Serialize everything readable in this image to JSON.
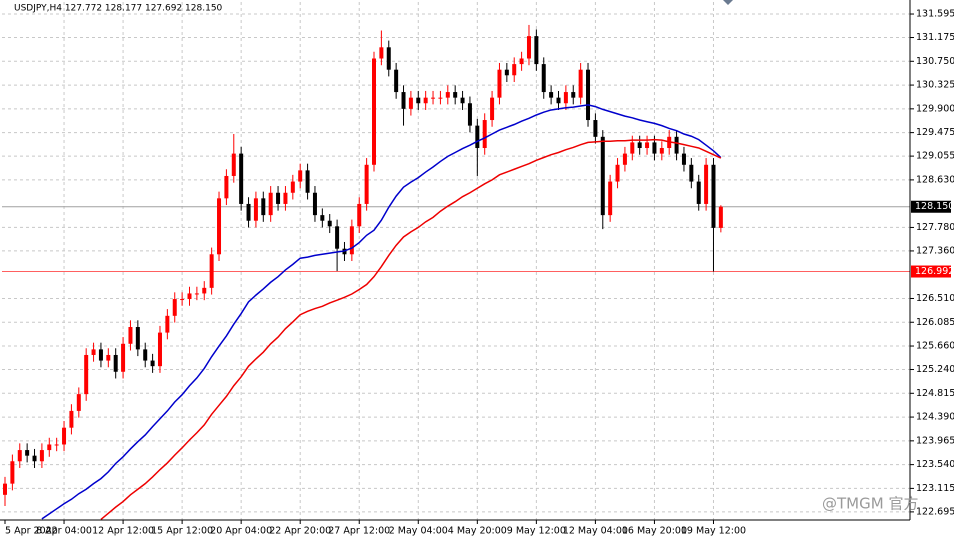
{
  "chart_data": {
    "type": "candlestick",
    "title": "USDJPY,H4 127.772 128.177 127.692 128.150",
    "watermark": "@TMGM 官方",
    "up_color": "#ff0000",
    "down_color": "#000000",
    "grid": true,
    "ylim": [
      122.55,
      131.81
    ],
    "yticks": [
      131.595,
      131.175,
      {
        "value": 130.75,
        "label": "130.750"
      },
      130.325,
      {
        "value": 129.9,
        "label": "129.900"
      },
      129.475,
      129.055,
      {
        "value": 128.63,
        "label": "128.630"
      },
      {
        "value": 127.78,
        "label": "127.780"
      },
      {
        "value": 127.36,
        "label": "127.360"
      },
      {
        "value": 126.51,
        "label": "126.510"
      },
      126.085,
      {
        "value": 125.66,
        "label": "125.660"
      },
      {
        "value": 125.24,
        "label": "125.240"
      },
      124.815,
      {
        "value": 124.39,
        "label": "124.390"
      },
      123.965,
      {
        "value": 123.54,
        "label": "123.540"
      },
      123.115,
      122.695
    ],
    "price_lines": [
      {
        "value": 128.15,
        "label": "128.150",
        "color": "#a0a0a0",
        "box_color": "#000000"
      },
      {
        "value": 126.992,
        "label": "126.992",
        "color": "#ff6060",
        "box_color": "#ff0000"
      }
    ],
    "categories": [
      "5 Apr 2022",
      null,
      null,
      null,
      null,
      null,
      null,
      null,
      "8 Apr 04:00",
      null,
      null,
      null,
      null,
      null,
      null,
      null,
      "12 Apr 12:00",
      null,
      null,
      null,
      null,
      null,
      null,
      null,
      "15 Apr 12:00",
      null,
      null,
      null,
      null,
      null,
      null,
      null,
      "20 Apr 04:00",
      null,
      null,
      null,
      null,
      null,
      null,
      null,
      "22 Apr 20:00",
      null,
      null,
      null,
      null,
      null,
      null,
      null,
      "27 Apr 12:00",
      null,
      null,
      null,
      null,
      null,
      null,
      null,
      "2 May 04:00",
      null,
      null,
      null,
      null,
      null,
      null,
      null,
      "4 May 20:00",
      null,
      null,
      null,
      null,
      null,
      null,
      null,
      "9 May 12:00",
      null,
      null,
      null,
      null,
      null,
      null,
      null,
      "12 May 04:00",
      null,
      null,
      null,
      null,
      null,
      null,
      null,
      "16 May 20:00",
      null,
      null,
      null,
      null,
      null,
      null,
      null,
      "19 May 12:00",
      null
    ],
    "open": [
      123.0,
      123.2,
      123.6,
      123.8,
      123.7,
      123.6,
      123.8,
      123.9,
      123.9,
      124.2,
      124.5,
      124.8,
      125.5,
      125.6,
      125.4,
      125.5,
      125.2,
      125.7,
      126.0,
      125.6,
      125.4,
      125.3,
      125.9,
      126.2,
      126.5,
      126.5,
      126.6,
      126.6,
      126.7,
      127.3,
      128.3,
      128.7,
      129.1,
      128.2,
      127.9,
      128.3,
      128.0,
      128.4,
      128.2,
      128.4,
      128.6,
      128.8,
      128.4,
      128.0,
      127.9,
      127.8,
      127.4,
      127.3,
      127.8,
      128.2,
      128.9,
      130.8,
      131.0,
      130.6,
      130.2,
      129.9,
      130.1,
      130.0,
      130.1,
      130.1,
      130.1,
      130.2,
      130.1,
      130.0,
      129.6,
      129.2,
      129.7,
      130.1,
      130.6,
      130.5,
      130.7,
      130.8,
      131.2,
      130.7,
      130.2,
      130.1,
      130.0,
      130.2,
      130.1,
      130.6,
      129.7,
      129.4,
      128.0,
      128.6,
      128.9,
      129.1,
      129.3,
      129.2,
      129.3,
      129.1,
      129.2,
      129.4,
      129.1,
      128.9,
      128.6,
      128.2,
      128.9,
      127.772
    ],
    "high": [
      123.32,
      123.72,
      123.92,
      123.92,
      123.82,
      123.92,
      124.02,
      124.02,
      124.32,
      124.62,
      124.92,
      125.62,
      125.72,
      125.72,
      125.62,
      125.62,
      125.82,
      126.12,
      126.12,
      125.72,
      125.52,
      126.02,
      126.32,
      126.62,
      126.62,
      126.72,
      126.72,
      126.82,
      127.42,
      128.42,
      128.82,
      129.45,
      129.22,
      128.32,
      128.42,
      128.42,
      128.52,
      128.52,
      128.52,
      128.72,
      128.92,
      128.92,
      128.52,
      128.12,
      128.02,
      127.92,
      127.52,
      127.92,
      128.32,
      129.02,
      130.92,
      131.3,
      131.12,
      130.72,
      130.32,
      130.22,
      130.22,
      130.22,
      130.22,
      130.22,
      130.32,
      130.32,
      130.22,
      130.12,
      129.72,
      129.82,
      130.22,
      130.72,
      130.72,
      130.82,
      130.92,
      131.4,
      131.32,
      130.82,
      130.32,
      130.22,
      130.32,
      130.32,
      130.72,
      130.72,
      129.82,
      129.52,
      128.72,
      129.02,
      129.22,
      129.42,
      129.42,
      129.42,
      129.42,
      129.32,
      129.52,
      129.52,
      129.22,
      129.02,
      128.72,
      129.02,
      129.02,
      128.177
    ],
    "low": [
      122.8,
      123.08,
      123.48,
      123.58,
      123.48,
      123.48,
      123.68,
      123.78,
      123.78,
      124.08,
      124.38,
      124.68,
      125.38,
      125.28,
      125.28,
      125.08,
      125.08,
      125.58,
      125.48,
      125.28,
      125.18,
      125.18,
      125.78,
      126.08,
      126.38,
      126.38,
      126.48,
      126.48,
      126.58,
      127.18,
      128.18,
      128.58,
      128.08,
      127.78,
      127.78,
      127.88,
      127.88,
      128.08,
      128.08,
      128.28,
      128.48,
      128.28,
      127.88,
      127.78,
      127.68,
      127.0,
      127.18,
      127.18,
      127.68,
      128.08,
      128.78,
      130.68,
      130.48,
      130.08,
      129.6,
      129.78,
      129.88,
      129.88,
      129.98,
      129.98,
      129.98,
      129.98,
      129.88,
      129.48,
      128.7,
      129.08,
      129.58,
      129.98,
      130.38,
      130.38,
      130.58,
      130.68,
      130.58,
      130.08,
      129.98,
      129.88,
      129.88,
      129.98,
      129.98,
      129.58,
      129.28,
      127.75,
      127.88,
      128.48,
      128.78,
      128.98,
      129.08,
      129.08,
      128.98,
      128.98,
      129.08,
      128.98,
      128.78,
      128.48,
      128.08,
      128.08,
      126.992,
      127.692
    ],
    "close": [
      123.2,
      123.6,
      123.8,
      123.7,
      123.6,
      123.8,
      123.9,
      123.9,
      124.2,
      124.5,
      124.8,
      125.5,
      125.6,
      125.4,
      125.5,
      125.2,
      125.7,
      126.0,
      125.6,
      125.4,
      125.3,
      125.9,
      126.2,
      126.5,
      126.5,
      126.6,
      126.6,
      126.7,
      127.3,
      128.3,
      128.7,
      129.1,
      128.2,
      127.9,
      128.3,
      128.0,
      128.4,
      128.2,
      128.4,
      128.6,
      128.8,
      128.4,
      128.0,
      127.9,
      127.8,
      127.4,
      127.3,
      127.8,
      128.2,
      128.9,
      130.8,
      131.0,
      130.6,
      130.2,
      129.9,
      130.1,
      130.0,
      130.1,
      130.1,
      130.1,
      130.2,
      130.1,
      130.0,
      129.6,
      129.2,
      129.7,
      130.1,
      130.6,
      130.5,
      130.7,
      130.8,
      131.2,
      130.7,
      130.2,
      130.1,
      130.0,
      130.2,
      130.1,
      130.6,
      129.7,
      129.4,
      128.0,
      128.6,
      128.9,
      129.1,
      129.3,
      129.2,
      129.3,
      129.1,
      129.2,
      129.4,
      129.1,
      128.9,
      128.6,
      128.2,
      128.9,
      127.772,
      128.15
    ],
    "series": [
      {
        "color": "#0000cc",
        "values": [
          null,
          null,
          null,
          null,
          null,
          122.57,
          122.66,
          122.75,
          122.84,
          122.92,
          123.02,
          123.1,
          123.2,
          123.29,
          123.41,
          123.56,
          123.68,
          123.82,
          123.95,
          124.07,
          124.22,
          124.36,
          124.5,
          124.66,
          124.79,
          124.95,
          125.09,
          125.26,
          125.47,
          125.66,
          125.84,
          126.05,
          126.24,
          126.45,
          126.57,
          126.68,
          126.8,
          126.9,
          127.02,
          127.12,
          127.23,
          127.25,
          127.28,
          127.3,
          127.32,
          127.34,
          127.36,
          127.41,
          127.51,
          127.64,
          127.73,
          127.91,
          128.14,
          128.34,
          128.5,
          128.59,
          128.67,
          128.77,
          128.86,
          128.96,
          129.05,
          129.12,
          129.19,
          129.25,
          129.32,
          129.38,
          129.45,
          129.52,
          129.57,
          129.62,
          129.68,
          129.73,
          129.79,
          129.84,
          129.88,
          129.9,
          129.92,
          129.93,
          129.95,
          129.97,
          129.94,
          129.89,
          129.85,
          129.81,
          129.77,
          129.74,
          129.7,
          129.67,
          129.64,
          129.6,
          129.55,
          129.51,
          129.45,
          129.41,
          129.35,
          129.25,
          129.15,
          129.03
        ]
      },
      {
        "color": "#ee0000",
        "values": [
          null,
          null,
          null,
          null,
          null,
          null,
          null,
          null,
          null,
          null,
          null,
          null,
          null,
          122.56,
          122.67,
          122.78,
          122.88,
          123.0,
          123.1,
          123.2,
          123.32,
          123.45,
          123.57,
          123.71,
          123.84,
          123.98,
          124.11,
          124.25,
          124.44,
          124.6,
          124.76,
          124.95,
          125.11,
          125.3,
          125.43,
          125.55,
          125.7,
          125.82,
          125.97,
          126.09,
          126.22,
          126.28,
          126.33,
          126.37,
          126.43,
          126.48,
          126.53,
          126.59,
          126.67,
          126.76,
          126.9,
          127.08,
          127.28,
          127.46,
          127.61,
          127.7,
          127.78,
          127.88,
          127.96,
          128.07,
          128.16,
          128.24,
          128.33,
          128.4,
          128.48,
          128.56,
          128.63,
          128.72,
          128.77,
          128.82,
          128.87,
          128.92,
          128.98,
          129.03,
          129.08,
          129.12,
          129.17,
          129.21,
          129.26,
          129.3,
          129.31,
          129.32,
          129.32,
          129.33,
          129.33,
          129.34,
          129.34,
          129.34,
          129.35,
          129.34,
          129.31,
          129.29,
          129.26,
          129.23,
          129.2,
          129.14,
          129.08,
          129.02
        ]
      }
    ]
  }
}
